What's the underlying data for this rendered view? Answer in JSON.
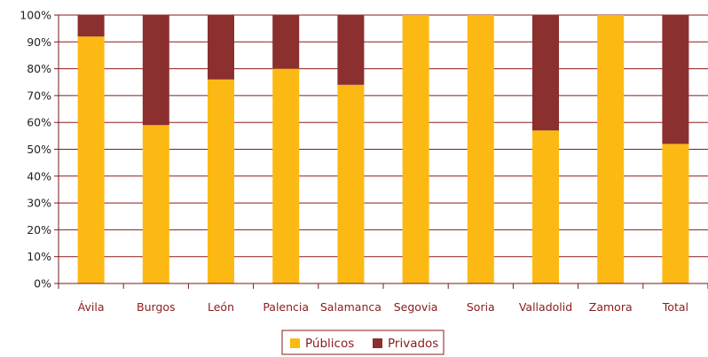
{
  "chart_data": {
    "type": "bar",
    "stacked": true,
    "percent": true,
    "categories": [
      "Ávila",
      "Burgos",
      "León",
      "Palencia",
      "Salamanca",
      "Segovia",
      "Soria",
      "Valladolid",
      "Zamora",
      "Total"
    ],
    "series": [
      {
        "name": "Públicos",
        "color": "#FDB913",
        "values": [
          92,
          59,
          76,
          80,
          74,
          100,
          100,
          57,
          100,
          52
        ]
      },
      {
        "name": "Privados",
        "color": "#8B2F2F",
        "values": [
          8,
          41,
          24,
          20,
          26,
          0,
          0,
          43,
          0,
          48
        ]
      }
    ],
    "y_ticks": [
      "0%",
      "10%",
      "20%",
      "30%",
      "40%",
      "50%",
      "60%",
      "70%",
      "80%",
      "90%",
      "100%"
    ],
    "ylim": [
      0,
      100
    ],
    "grid": true,
    "legend_position": "bottom"
  },
  "colors": {
    "axis": "#7a1a1a",
    "grid": "#8b1a1a"
  }
}
